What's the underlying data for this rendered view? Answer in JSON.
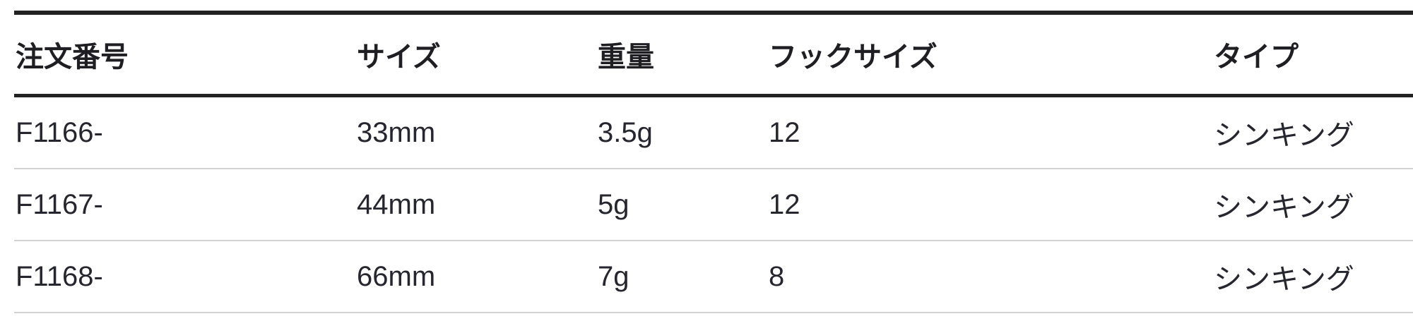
{
  "table": {
    "columns": [
      {
        "key": "order_number",
        "label": "注文番号"
      },
      {
        "key": "size",
        "label": "サイズ"
      },
      {
        "key": "weight",
        "label": "重量"
      },
      {
        "key": "hook_size",
        "label": "フックサイズ"
      },
      {
        "key": "type",
        "label": "タイプ"
      }
    ],
    "rows": [
      [
        "F1166-",
        "33mm",
        "3.5g",
        "12",
        "シンキング"
      ],
      [
        "F1167-",
        "44mm",
        "5g",
        "12",
        "シンキング"
      ],
      [
        "F1168-",
        "66mm",
        "7g",
        "8",
        "シンキング"
      ]
    ]
  },
  "colors": {
    "background": "#ffffff",
    "header_text": "#1f1f23",
    "body_text": "#26262e",
    "heavy_rule": "#222222",
    "light_rule": "#d2d2d2"
  }
}
